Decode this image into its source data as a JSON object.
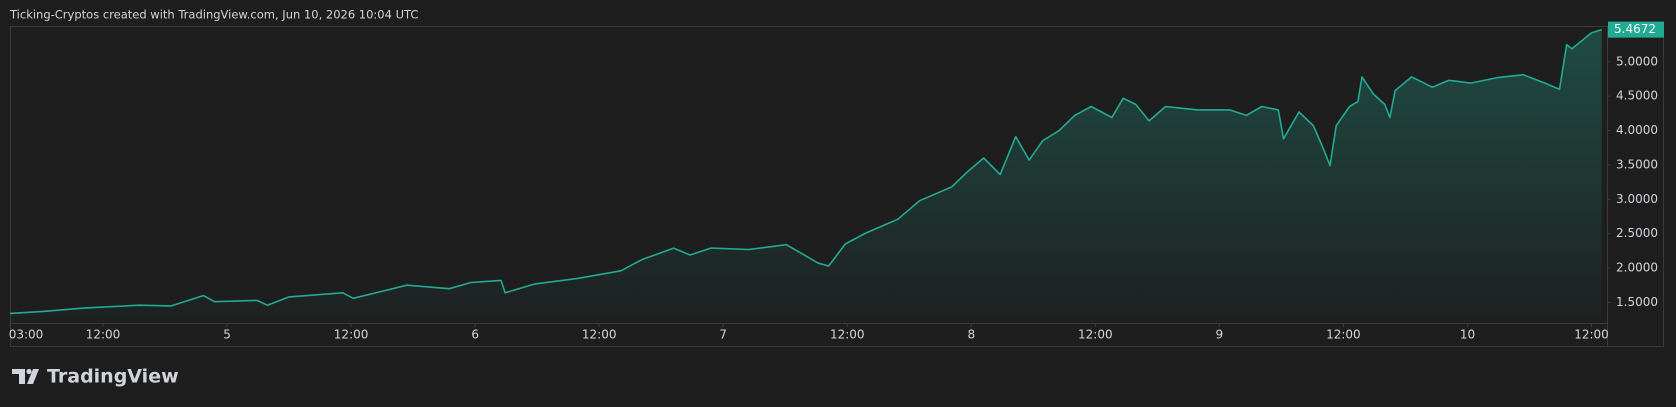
{
  "header": {
    "title": "Ticking-Cryptos created with TradingView.com, Jun 10, 2026 10:04 UTC"
  },
  "footer": {
    "brand": "TradingView"
  },
  "chart_data": {
    "type": "area",
    "color": "#22ab94",
    "x": [
      3.0,
      6.2,
      10.3,
      15.5,
      18.6,
      21.7,
      22.8,
      26.9,
      27.9,
      30.0,
      35.2,
      36.2,
      41.4,
      45.5,
      47.6,
      50.5,
      50.9,
      53.8,
      57.9,
      62.1,
      64.1,
      67.2,
      68.8,
      70.8,
      74.5,
      78.1,
      79.6,
      81.2,
      82.2,
      83.8,
      85.8,
      88.9,
      91.0,
      94.1,
      95.7,
      97.2,
      98.8,
      100.3,
      101.6,
      102.9,
      104.5,
      106.0,
      107.6,
      109.6,
      110.7,
      111.9,
      113.2,
      114.8,
      117.9,
      121.0,
      122.6,
      124.1,
      125.7,
      126.2,
      127.7,
      129.1,
      130.1,
      130.7,
      131.3,
      132.6,
      133.4,
      133.8,
      134.9,
      136.0,
      136.5,
      137.0,
      138.6,
      140.6,
      142.2,
      144.3,
      146.9,
      149.4,
      151.5,
      152.9,
      153.6,
      154.1,
      155.1,
      156.0,
      157.0
    ],
    "values": [
      1.34,
      1.37,
      1.42,
      1.46,
      1.45,
      1.6,
      1.51,
      1.53,
      1.46,
      1.58,
      1.64,
      1.56,
      1.75,
      1.7,
      1.79,
      1.82,
      1.64,
      1.77,
      1.85,
      1.96,
      2.12,
      2.29,
      2.19,
      2.29,
      2.27,
      2.34,
      2.21,
      2.07,
      2.03,
      2.35,
      2.51,
      2.71,
      2.98,
      3.18,
      3.41,
      3.6,
      3.36,
      3.91,
      3.57,
      3.85,
      4.0,
      4.22,
      4.35,
      4.19,
      4.47,
      4.38,
      4.14,
      4.35,
      4.3,
      4.3,
      4.22,
      4.35,
      4.3,
      3.88,
      4.27,
      4.07,
      3.72,
      3.49,
      4.07,
      4.35,
      4.42,
      4.78,
      4.53,
      4.38,
      4.19,
      4.58,
      4.78,
      4.63,
      4.73,
      4.69,
      4.77,
      4.81,
      4.69,
      4.6,
      5.25,
      5.19,
      5.31,
      5.42,
      5.4672
    ],
    "xlim": [
      3,
      157.5
    ],
    "ylim": [
      1.23,
      5.52
    ],
    "xticks": [
      {
        "value": 3,
        "label": "03:00"
      },
      {
        "value": 12,
        "label": "12:00"
      },
      {
        "value": 24,
        "label": "5"
      },
      {
        "value": 36,
        "label": "12:00"
      },
      {
        "value": 48,
        "label": "6"
      },
      {
        "value": 60,
        "label": "12:00"
      },
      {
        "value": 72,
        "label": "7"
      },
      {
        "value": 84,
        "label": "12:00"
      },
      {
        "value": 96,
        "label": "8"
      },
      {
        "value": 108,
        "label": "12:00"
      },
      {
        "value": 120,
        "label": "9"
      },
      {
        "value": 132,
        "label": "12:00"
      },
      {
        "value": 144,
        "label": "10"
      },
      {
        "value": 156,
        "label": "12:00"
      }
    ],
    "yticks": [
      {
        "value": 1.5,
        "label": "1.5000"
      },
      {
        "value": 2,
        "label": "2.0000"
      },
      {
        "value": 2.5,
        "label": "2.5000"
      },
      {
        "value": 3,
        "label": "3.0000"
      },
      {
        "value": 3.5,
        "label": "3.5000"
      },
      {
        "value": 4,
        "label": "4.0000"
      },
      {
        "value": 4.5,
        "label": "4.5000"
      },
      {
        "value": 5,
        "label": "5.0000"
      }
    ]
  }
}
